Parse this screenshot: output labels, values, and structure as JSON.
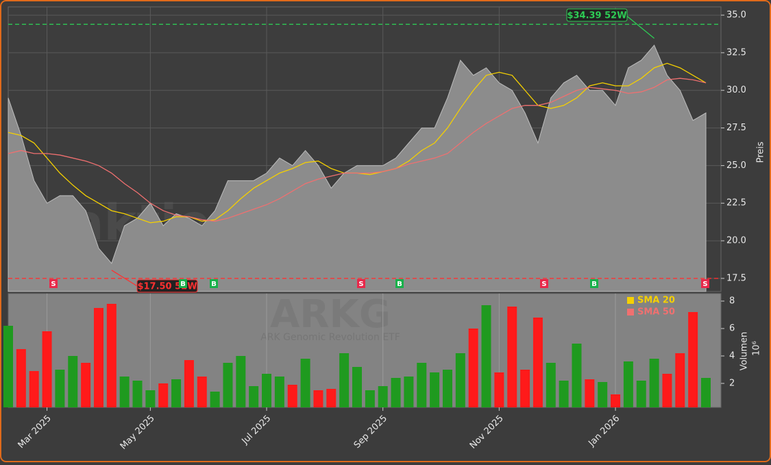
{
  "chart_data": [
    {
      "type": "line",
      "categories": [
        null,
        null,
        null,
        "Mar 2025",
        null,
        null,
        null,
        null,
        null,
        null,
        null,
        "May 2025",
        null,
        null,
        null,
        null,
        null,
        null,
        null,
        null,
        "Jul 2025",
        null,
        null,
        null,
        null,
        null,
        null,
        null,
        null,
        "Sep 2025",
        null,
        null,
        null,
        null,
        null,
        null,
        null,
        null,
        "Nov 2025",
        null,
        null,
        null,
        null,
        null,
        null,
        null,
        null,
        "Jan 2026",
        null,
        null,
        null,
        null,
        null,
        null,
        null
      ],
      "series": [
        {
          "color": "#8c8c8c",
          "values": [
            29.5,
            27,
            24,
            22.5,
            23,
            23,
            22,
            19.5,
            18.5,
            21,
            21.5,
            22.5,
            21,
            21.8,
            21.5,
            21,
            22,
            24,
            24,
            24,
            24.5,
            25.5,
            25,
            26,
            25,
            23.5,
            24.5,
            25,
            25,
            25,
            25.5,
            26.5,
            27.5,
            27.5,
            29.5,
            32,
            31,
            31.5,
            30.5,
            30,
            28.5,
            26.5,
            29.5,
            30.5,
            31,
            30,
            30,
            29,
            31.5,
            32,
            33,
            31,
            30,
            28,
            28.5
          ]
        },
        {
          "name": "SMA 20",
          "color": "#f5d000",
          "values": [
            27.2,
            27,
            26.5,
            25.5,
            24.5,
            23.7,
            23,
            22.5,
            22,
            21.8,
            21.5,
            21.2,
            21.3,
            21.6,
            21.6,
            21.3,
            21.4,
            22,
            22.8,
            23.5,
            24,
            24.5,
            24.8,
            25.2,
            25.3,
            24.8,
            24.5,
            24.5,
            24.4,
            24.6,
            24.8,
            25.3,
            26,
            26.5,
            27.5,
            28.8,
            30,
            31,
            31.2,
            31,
            30,
            29,
            28.8,
            29,
            29.5,
            30.3,
            30.5,
            30.3,
            30.3,
            30.8,
            31.5,
            31.8,
            31.5,
            31,
            30.5
          ]
        },
        {
          "name": "SMA 50",
          "color": "#f07070",
          "values": [
            25.8,
            26,
            25.8,
            25.8,
            25.7,
            25.5,
            25.3,
            25,
            24.5,
            23.8,
            23.2,
            22.5,
            22,
            21.7,
            21.6,
            21.4,
            21.3,
            21.5,
            21.8,
            22.1,
            22.4,
            22.8,
            23.3,
            23.8,
            24.1,
            24.3,
            24.5,
            24.5,
            24.5,
            24.6,
            24.8,
            25.1,
            25.3,
            25.5,
            25.8,
            26.5,
            27.2,
            27.8,
            28.3,
            28.8,
            29,
            29,
            29.2,
            29.6,
            30,
            30.2,
            30.1,
            30,
            29.8,
            29.9,
            30.2,
            30.7,
            30.8,
            30.7,
            30.5
          ]
        }
      ],
      "ylim": [
        16.63,
        35.55
      ],
      "yticks": [
        17.5,
        {
          "value": 20,
          "label": "20.0"
        },
        22.5,
        {
          "value": 25,
          "label": "25.0"
        },
        27.5,
        {
          "value": 30,
          "label": "30.0"
        },
        32.5,
        {
          "value": 35,
          "label": "35.0"
        }
      ],
      "ylabel": "Preis",
      "grid": true,
      "watermark": "aktiensignale.trade",
      "hlines": [
        {
          "value": 34.39,
          "label": "$34.39 52W",
          "color": "#2ecc55"
        },
        {
          "value": 17.5,
          "label": "$17.50 52W",
          "color": "#ff3030"
        }
      ],
      "signals": [
        "S",
        "B",
        "B",
        "S",
        "B",
        "S",
        "B",
        "S"
      ],
      "legend": "upper right"
    },
    {
      "type": "bar",
      "values": [
        6.2,
        4.5,
        2.9,
        5.8,
        3.0,
        4.0,
        3.5,
        7.5,
        7.8,
        2.5,
        2.2,
        1.5,
        2.0,
        2.3,
        3.7,
        2.5,
        1.4,
        3.5,
        4.0,
        1.8,
        2.7,
        2.5,
        1.9,
        3.8,
        1.5,
        1.6,
        4.2,
        3.2,
        1.5,
        1.8,
        2.4,
        2.5,
        3.5,
        2.8,
        3.0,
        4.2,
        6.0,
        7.7,
        2.8,
        7.6,
        3.0,
        6.8,
        3.5,
        2.2,
        4.9,
        2.3,
        2.1,
        1.2,
        3.6,
        2.2,
        3.8,
        2.7,
        4.2,
        7.2,
        2.4
      ],
      "up_color": "#1f9a1f",
      "down_color": "#ff1a1a",
      "ylim": [
        0.25,
        8.55
      ],
      "yticks": [
        2,
        4,
        6,
        8
      ],
      "ylabel": "Volumen",
      "scale_label": "10⁶",
      "watermark": "ARKG",
      "subtitle": "ARK Genomic Revolution ETF"
    }
  ]
}
